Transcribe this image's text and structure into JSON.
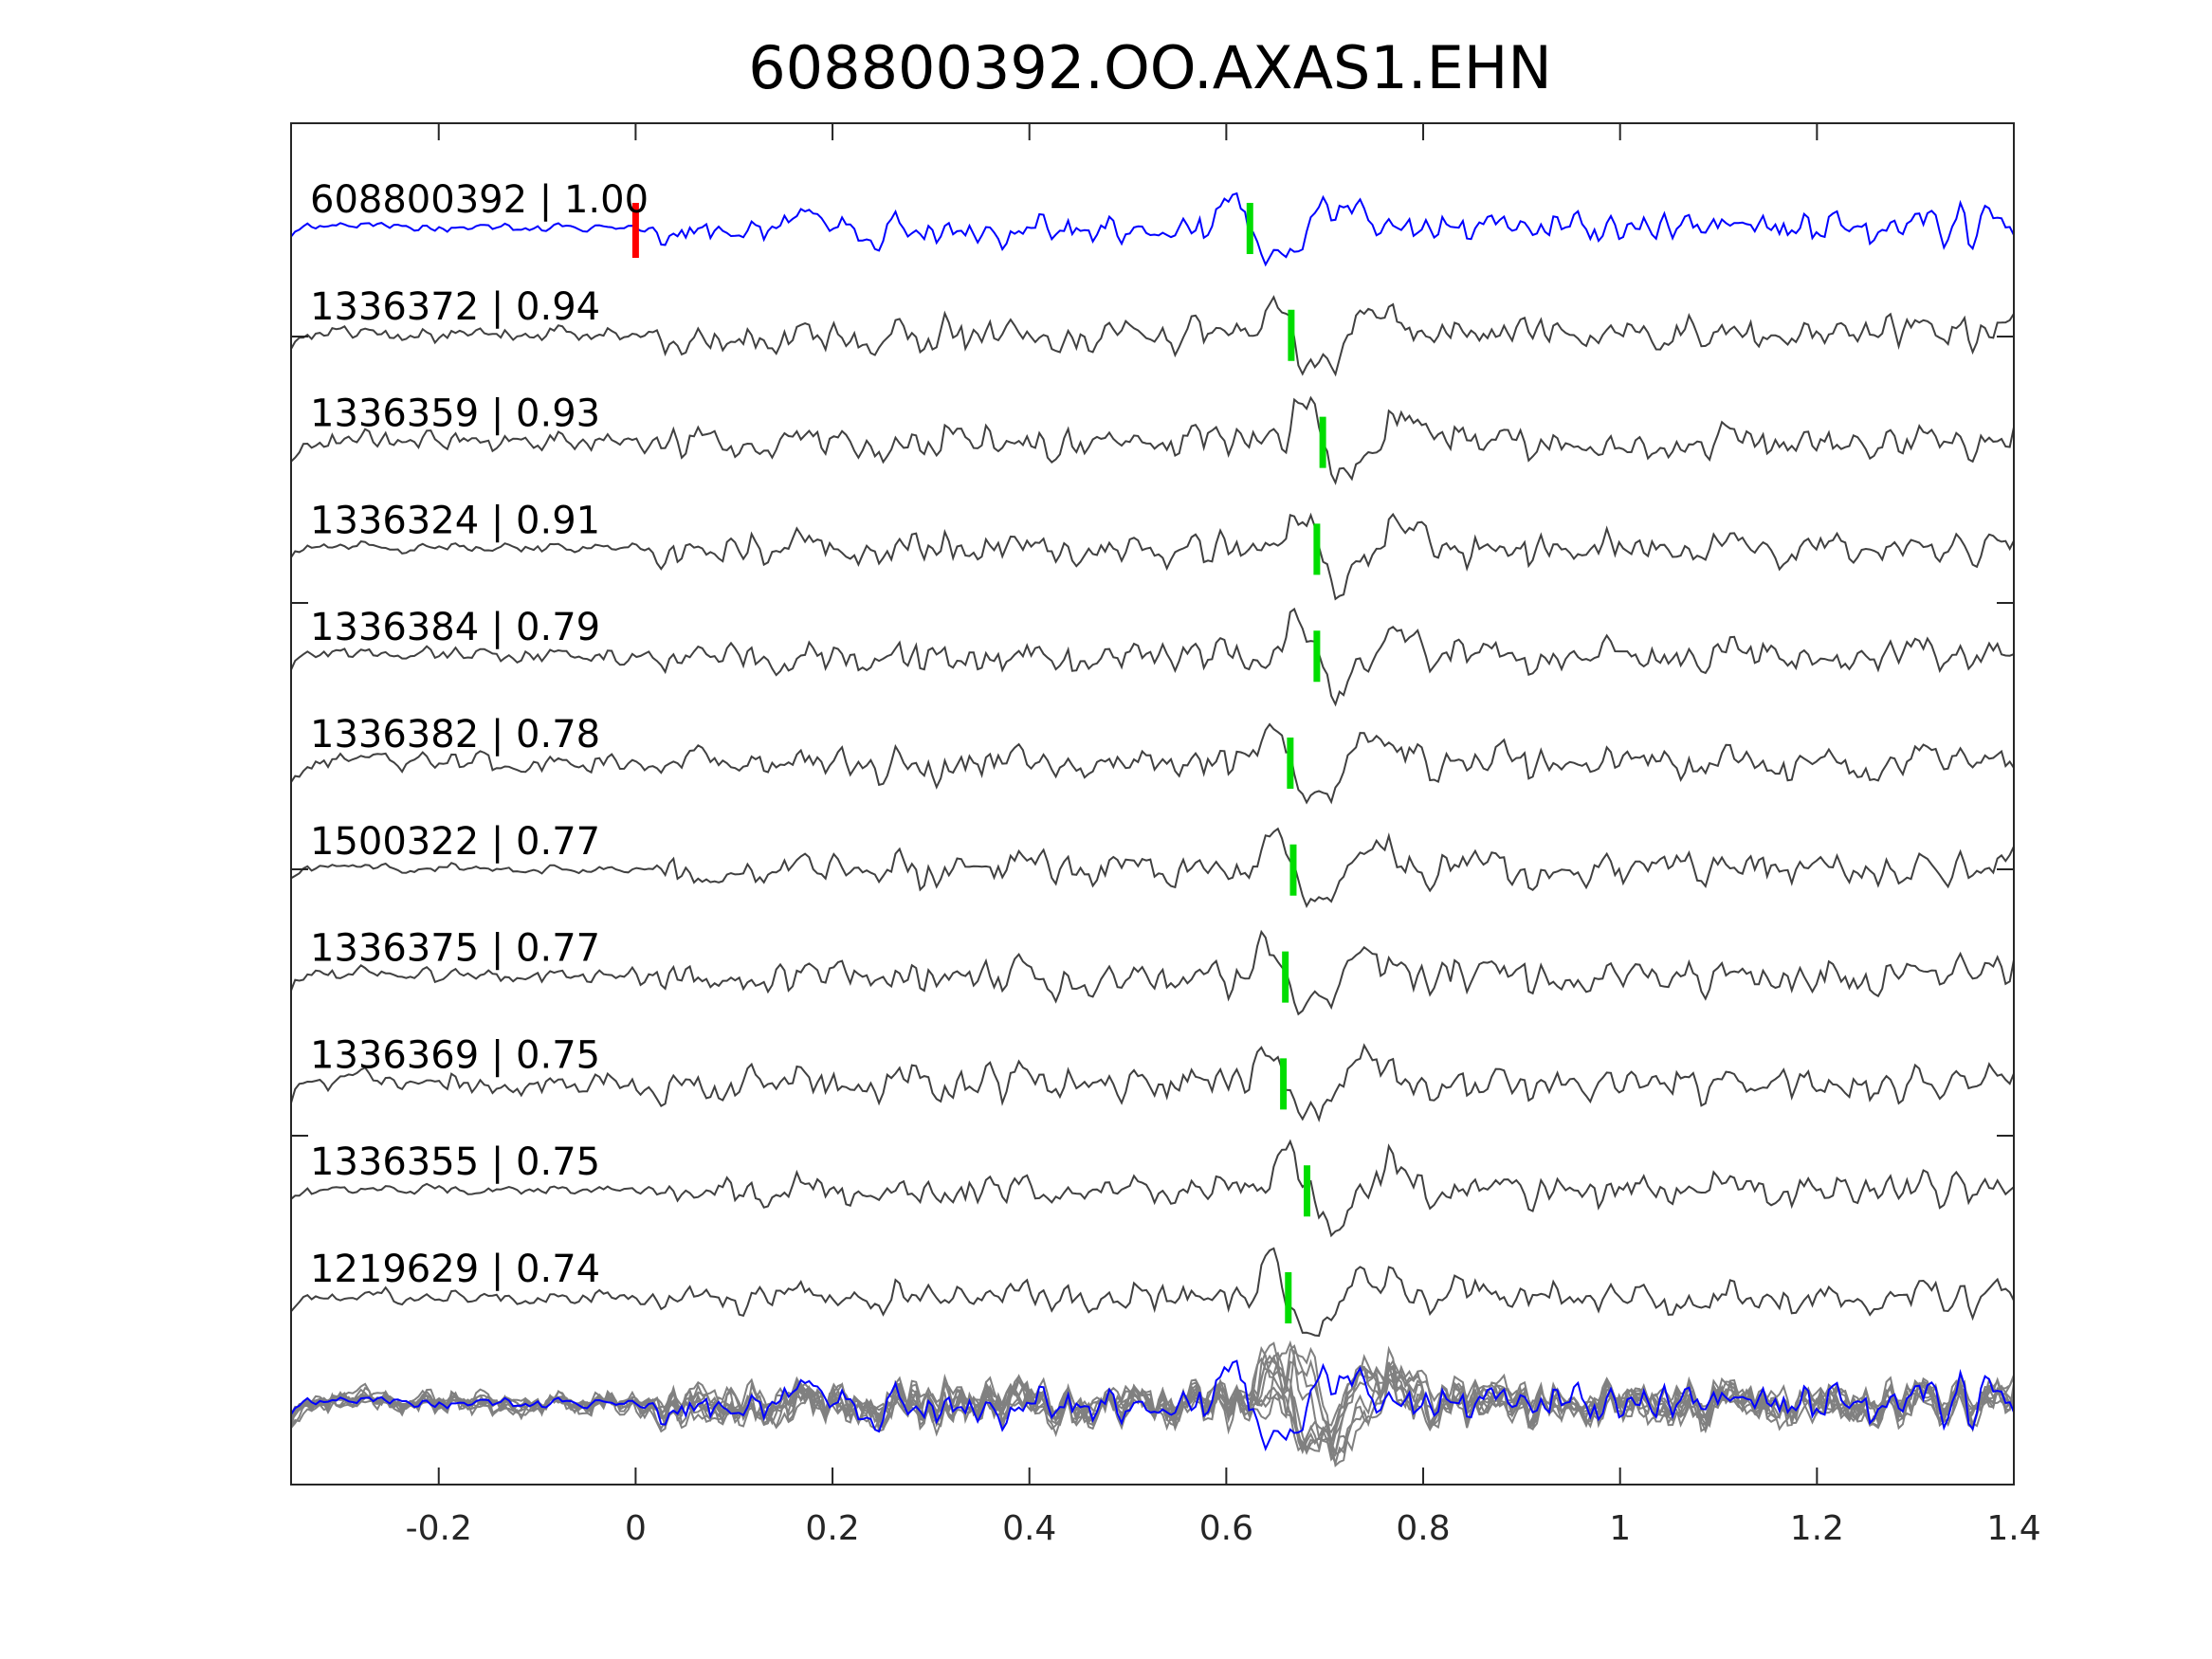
{
  "chart_data": {
    "type": "line",
    "title": "608800392.OO.AXAS1.EHN",
    "xlabel": "",
    "ylabel": "",
    "xlim": [
      -0.35,
      1.4
    ],
    "xticks": [
      -0.2,
      0,
      0.2,
      0.4,
      0.6,
      0.8,
      1,
      1.2,
      1.4
    ],
    "xtick_labels": [
      "-0.2",
      "0",
      "0.2",
      "0.4",
      "0.6",
      "0.8",
      "1",
      "1.2",
      "1.4"
    ],
    "grid": false,
    "colors": {
      "template": "#0000ff",
      "match": "#404040",
      "stack": "#808080",
      "reference_pick": "#ff0000",
      "pick": "#00dd00"
    },
    "reference_pick_time": 0,
    "traces": [
      {
        "label": "608800392 | 1.00",
        "id": "608800392",
        "cc": 1.0,
        "pick": 0.624,
        "template": true
      },
      {
        "label": "1336372 | 0.94",
        "id": "1336372",
        "cc": 0.94,
        "pick": 0.666
      },
      {
        "label": "1336359 | 0.93",
        "id": "1336359",
        "cc": 0.93,
        "pick": 0.698
      },
      {
        "label": "1336324 | 0.91",
        "id": "1336324",
        "cc": 0.91,
        "pick": 0.692
      },
      {
        "label": "1336384 | 0.79",
        "id": "1336384",
        "cc": 0.79,
        "pick": 0.692
      },
      {
        "label": "1336382 | 0.78",
        "id": "1336382",
        "cc": 0.78,
        "pick": 0.665
      },
      {
        "label": "1500322 | 0.77",
        "id": "1500322",
        "cc": 0.77,
        "pick": 0.668
      },
      {
        "label": "1336375 | 0.77",
        "id": "1336375",
        "cc": 0.77,
        "pick": 0.66
      },
      {
        "label": "1336369 | 0.75",
        "id": "1336369",
        "cc": 0.75,
        "pick": 0.658
      },
      {
        "label": "1336355 | 0.75",
        "id": "1336355",
        "cc": 0.75,
        "pick": 0.682
      },
      {
        "label": "1219629 | 0.74",
        "id": "1219629",
        "cc": 0.74,
        "pick": 0.663
      }
    ]
  }
}
